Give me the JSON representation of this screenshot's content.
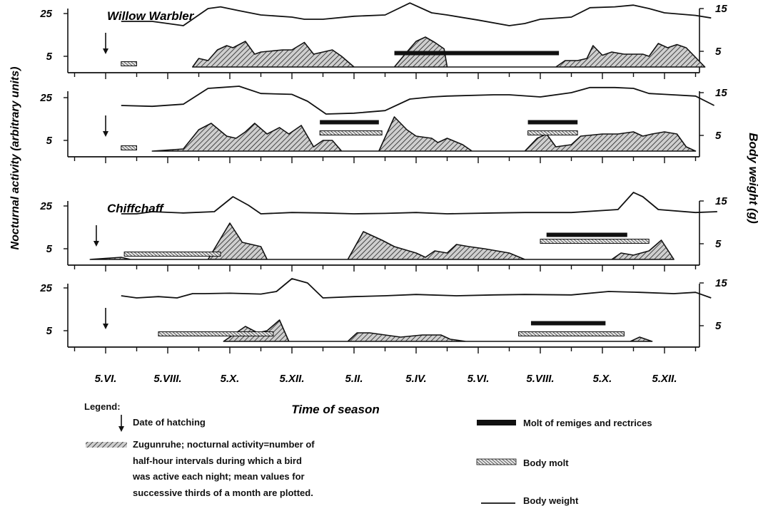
{
  "chart_data": {
    "type": "area",
    "xlabel": "Time of season",
    "ylabel_left": "Nocturnal activity (arbitrary units)",
    "ylabel_right": "Body weight (g)",
    "x_ticks": [
      "5.VI.",
      "5.VIII.",
      "5.X.",
      "5.XII.",
      "5.II.",
      "5.IV.",
      "5.VI.",
      "5.VIII.",
      "5.X.",
      "5.XII."
    ],
    "x_unit": "month index (5.VI. of year 1 = 0)",
    "x_range": [
      -1,
      19.7
    ],
    "activity_ticks": [
      5,
      25
    ],
    "weight_ticks": [
      5,
      15
    ],
    "panels": [
      {
        "species_label": "Willow Warbler",
        "hatching": 0,
        "weight": [
          [
            0.5,
            12
          ],
          [
            1.5,
            12
          ],
          [
            2.5,
            11
          ],
          [
            3.3,
            15
          ],
          [
            3.7,
            15.4
          ],
          [
            4.3,
            14.5
          ],
          [
            5,
            13.5
          ],
          [
            6,
            13
          ],
          [
            6.4,
            12.5
          ],
          [
            7,
            12.5
          ],
          [
            8,
            13.2
          ],
          [
            9,
            13.5
          ],
          [
            9.8,
            16.3
          ],
          [
            10.5,
            14
          ],
          [
            11,
            13.5
          ],
          [
            12,
            12.3
          ],
          [
            13,
            11
          ],
          [
            13.5,
            11.5
          ],
          [
            14,
            12.5
          ],
          [
            15,
            13
          ],
          [
            15.6,
            15.2
          ],
          [
            16.4,
            15.4
          ],
          [
            17,
            15.8
          ],
          [
            17.5,
            15
          ],
          [
            18,
            14
          ],
          [
            19,
            13.4
          ],
          [
            19.5,
            12.8
          ]
        ],
        "activity": [
          [
            2.8,
            0
          ],
          [
            3,
            4
          ],
          [
            3.3,
            3
          ],
          [
            3.6,
            8
          ],
          [
            3.9,
            10
          ],
          [
            4.1,
            9
          ],
          [
            4.5,
            12
          ],
          [
            4.8,
            6
          ],
          [
            5,
            7
          ],
          [
            5.7,
            8
          ],
          [
            6,
            8
          ],
          [
            6.4,
            11.5
          ],
          [
            6.7,
            6
          ],
          [
            7.3,
            8
          ],
          [
            7.6,
            5
          ],
          [
            8,
            0
          ],
          [
            9.3,
            0
          ],
          [
            9.7,
            7
          ],
          [
            10,
            12
          ],
          [
            10.3,
            14
          ],
          [
            10.6,
            11.5
          ],
          [
            10.9,
            8.5
          ],
          [
            11,
            0
          ],
          [
            14.5,
            0
          ],
          [
            14.8,
            3
          ],
          [
            15.2,
            3
          ],
          [
            15.5,
            4
          ],
          [
            15.7,
            10
          ],
          [
            16,
            5.5
          ],
          [
            16.3,
            7
          ],
          [
            16.7,
            6
          ],
          [
            17.3,
            6
          ],
          [
            17.5,
            5
          ],
          [
            17.8,
            11
          ],
          [
            18.1,
            9
          ],
          [
            18.4,
            10.5
          ],
          [
            18.7,
            9
          ],
          [
            19.3,
            0
          ]
        ],
        "body_molt": [
          [
            0.5,
            1.5
          ],
          [
            1,
            1.5
          ],
          [
            9.3,
            8.5
          ],
          [
            9.3,
            13.5
          ]
        ],
        "remiges_molt": [
          [
            9.3,
            6.5
          ],
          [
            14.6,
            6.5
          ]
        ]
      },
      {
        "species_label": "",
        "hatching": 0,
        "weight": [
          [
            0.5,
            12
          ],
          [
            1.5,
            11.8
          ],
          [
            2.5,
            12.3
          ],
          [
            3.3,
            16
          ],
          [
            3.7,
            16.2
          ],
          [
            4.3,
            16.5
          ],
          [
            5,
            14.8
          ],
          [
            6,
            14.6
          ],
          [
            6.5,
            13
          ],
          [
            7.1,
            10
          ],
          [
            8,
            10.2
          ],
          [
            9,
            10.8
          ],
          [
            9.8,
            13.5
          ],
          [
            10.5,
            14
          ],
          [
            11,
            14.2
          ],
          [
            12.5,
            14.5
          ],
          [
            13,
            14.5
          ],
          [
            14,
            14
          ],
          [
            15,
            15
          ],
          [
            15.6,
            16.2
          ],
          [
            16.4,
            16.2
          ],
          [
            17,
            16
          ],
          [
            17.5,
            14.8
          ],
          [
            18,
            14.6
          ],
          [
            19,
            14.2
          ],
          [
            19.6,
            12
          ]
        ],
        "activity": [
          [
            1.5,
            0
          ],
          [
            2.5,
            1
          ],
          [
            3,
            10
          ],
          [
            3.4,
            13
          ],
          [
            3.9,
            7
          ],
          [
            4.2,
            6
          ],
          [
            4.5,
            9
          ],
          [
            4.8,
            13
          ],
          [
            5.2,
            8
          ],
          [
            5.6,
            11
          ],
          [
            5.9,
            8
          ],
          [
            6.3,
            12
          ],
          [
            6.7,
            2
          ],
          [
            7,
            5
          ],
          [
            7.3,
            5
          ],
          [
            7.6,
            0
          ],
          [
            8.8,
            0
          ],
          [
            9.3,
            16
          ],
          [
            9.7,
            10
          ],
          [
            10,
            7
          ],
          [
            10.5,
            6
          ],
          [
            10.7,
            4
          ],
          [
            11,
            6
          ],
          [
            11.5,
            3
          ],
          [
            11.8,
            0
          ],
          [
            13.5,
            0
          ],
          [
            13.9,
            6
          ],
          [
            14.2,
            8
          ],
          [
            14.5,
            2
          ],
          [
            15,
            3
          ],
          [
            15.3,
            7
          ],
          [
            16,
            8
          ],
          [
            16.5,
            8
          ],
          [
            17,
            9
          ],
          [
            17.3,
            7
          ],
          [
            17.6,
            8
          ],
          [
            18,
            9
          ],
          [
            18.4,
            8
          ],
          [
            18.7,
            2
          ],
          [
            19,
            0
          ]
        ],
        "body_molt": [
          [
            0.5,
            1.5
          ],
          [
            1,
            1.5
          ],
          [
            6.9,
            8.5
          ],
          [
            8.9,
            8.5
          ],
          [
            13.6,
            8.5
          ],
          [
            15.2,
            8.5
          ]
        ],
        "remiges_molt": [
          [
            6.9,
            13.5
          ],
          [
            8.8,
            13.5
          ],
          [
            13.6,
            13.5
          ],
          [
            15.2,
            13.5
          ]
        ]
      },
      {
        "species_label": "Chiffchaff",
        "hatching": -0.3,
        "weight": [
          [
            0.5,
            12
          ],
          [
            1,
            12
          ],
          [
            1.5,
            12.5
          ],
          [
            2.5,
            12.2
          ],
          [
            3.5,
            12.5
          ],
          [
            4.1,
            16
          ],
          [
            4.6,
            14
          ],
          [
            5,
            12
          ],
          [
            6,
            12.3
          ],
          [
            7,
            12.2
          ],
          [
            8,
            12
          ],
          [
            9,
            12.1
          ],
          [
            10,
            12.3
          ],
          [
            11,
            12
          ],
          [
            12.5,
            12.2
          ],
          [
            13.5,
            12.3
          ],
          [
            15,
            12.3
          ],
          [
            16.5,
            13
          ],
          [
            17,
            17
          ],
          [
            17.3,
            16
          ],
          [
            17.8,
            13
          ],
          [
            19,
            12.3
          ],
          [
            19.7,
            12.5
          ]
        ],
        "activity": [
          [
            -0.5,
            0
          ],
          [
            0.5,
            1
          ],
          [
            0.8,
            0
          ],
          [
            3.3,
            0
          ],
          [
            4,
            17
          ],
          [
            4.4,
            8
          ],
          [
            5,
            6
          ],
          [
            5.2,
            0
          ],
          [
            7.8,
            0
          ],
          [
            8.3,
            13
          ],
          [
            8.6,
            11
          ],
          [
            8.9,
            9
          ],
          [
            9.3,
            6
          ],
          [
            10,
            3
          ],
          [
            10.3,
            1
          ],
          [
            10.6,
            4
          ],
          [
            11,
            3
          ],
          [
            11.3,
            7
          ],
          [
            11.7,
            6
          ],
          [
            12.2,
            5
          ],
          [
            12.6,
            4
          ],
          [
            13,
            3
          ],
          [
            13.5,
            0
          ],
          [
            16.3,
            0
          ],
          [
            16.6,
            3
          ],
          [
            17,
            2
          ],
          [
            17.5,
            4
          ],
          [
            17.9,
            9
          ],
          [
            18.3,
            0
          ]
        ],
        "body_molt": [
          [
            0.6,
            2.5
          ],
          [
            3.7,
            2.5
          ],
          [
            14,
            8.5
          ],
          [
            17.5,
            8.5
          ]
        ],
        "remiges_molt": [
          [
            14.2,
            11.5
          ],
          [
            16.8,
            11.5
          ]
        ]
      },
      {
        "species_label": "",
        "hatching": 0,
        "weight": [
          [
            0.5,
            12
          ],
          [
            1,
            11.5
          ],
          [
            1.7,
            11.8
          ],
          [
            2.3,
            11.5
          ],
          [
            2.8,
            12.5
          ],
          [
            3.2,
            12.5
          ],
          [
            4,
            12.6
          ],
          [
            5,
            12.4
          ],
          [
            5.5,
            13
          ],
          [
            6,
            16
          ],
          [
            6.5,
            15
          ],
          [
            7,
            11.5
          ],
          [
            8,
            11.8
          ],
          [
            9,
            12
          ],
          [
            10,
            12.3
          ],
          [
            11.3,
            12
          ],
          [
            12.5,
            12.2
          ],
          [
            13.5,
            12.3
          ],
          [
            15,
            12.2
          ],
          [
            16.2,
            13
          ],
          [
            17.2,
            12.8
          ],
          [
            18.3,
            12.5
          ],
          [
            19,
            12.8
          ],
          [
            19.5,
            11.5
          ]
        ],
        "activity": [
          [
            3.8,
            0
          ],
          [
            4.5,
            7
          ],
          [
            4.9,
            4
          ],
          [
            5.2,
            5
          ],
          [
            5.6,
            10
          ],
          [
            5.9,
            0
          ],
          [
            6.4,
            0
          ],
          [
            7.8,
            0
          ],
          [
            8.1,
            4
          ],
          [
            8.5,
            4
          ],
          [
            9,
            3
          ],
          [
            9.5,
            2
          ],
          [
            10.2,
            3
          ],
          [
            10.8,
            3
          ],
          [
            11.1,
            1
          ],
          [
            11.6,
            0
          ],
          [
            16.9,
            0
          ],
          [
            17.2,
            2
          ],
          [
            17.6,
            0
          ]
        ],
        "body_molt": [
          [
            1.7,
            3.5
          ],
          [
            5.4,
            3.5
          ],
          [
            13.3,
            3.5
          ],
          [
            16.7,
            3.5
          ]
        ],
        "remiges_molt": [
          [
            13.7,
            8.5
          ],
          [
            16.1,
            8.5
          ]
        ]
      }
    ],
    "legend": {
      "title": "Legend:",
      "hatching": "Date of hatching",
      "zugunruhe": [
        "Zugunruhe; nocturnal activity=number of",
        "half-hour intervals during which a bird",
        "was active each night; mean values for",
        "successive thirds of a month are plotted."
      ],
      "remiges_molt": "Molt of remiges and rectrices",
      "body_molt": "Body molt",
      "body_weight": "Body weight"
    },
    "grid": false
  }
}
